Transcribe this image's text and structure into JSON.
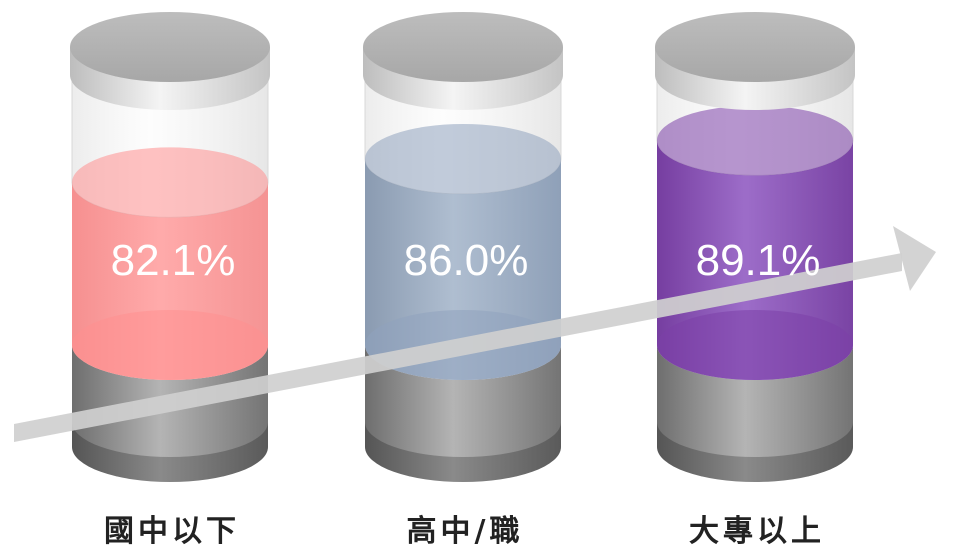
{
  "chart_data": {
    "type": "bar",
    "style": "3d-cylinder",
    "categories": [
      "國中以下",
      "高中/職",
      "大專以上"
    ],
    "values": [
      82.1,
      86.0,
      89.1
    ],
    "value_labels": [
      "82.1%",
      "86.0%",
      "89.1%"
    ],
    "unit": "%",
    "trend_arrow": "increasing",
    "colors": [
      "#ff8f8f",
      "#8fa3bd",
      "#7b3fa8"
    ]
  }
}
